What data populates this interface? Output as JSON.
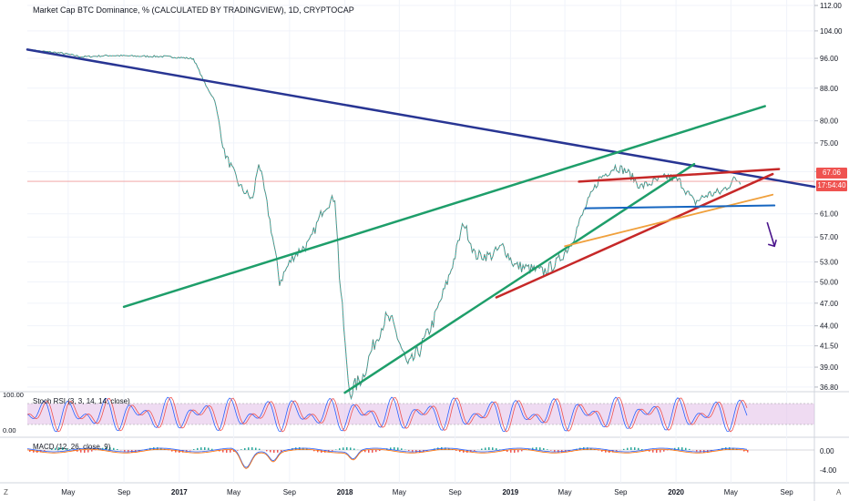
{
  "chart_data": {
    "type": "line",
    "title": "Market Cap BTC Dominance, % (CALCULATED BY TRADINGVIEW), 1D, CRYPTOCAP",
    "x_tick_labels": [
      "May",
      "Sep",
      "2017",
      "May",
      "Sep",
      "2018",
      "May",
      "Sep",
      "2019",
      "May",
      "Sep",
      "2020",
      "May",
      "Sep"
    ],
    "x_range": [
      "2016-02",
      "2020-11"
    ],
    "y_tick_labels": [
      "112.00",
      "104.00",
      "96.00",
      "88.00",
      "80.00",
      "75.00",
      "69.00",
      "61.00",
      "57.00",
      "53.00",
      "50.00",
      "47.00",
      "44.00",
      "41.50",
      "39.00",
      "36.80"
    ],
    "y_scale": "log",
    "last_price": "67.06",
    "countdown": "17:54:40",
    "series": [
      {
        "values": [
          [
            "2016-02-15",
            98.2
          ],
          [
            "2016-04-15",
            97.5
          ],
          [
            "2016-06-01",
            96.4
          ],
          [
            "2016-08-01",
            96.8
          ],
          [
            "2016-10-01",
            96.6
          ],
          [
            "2016-12-01",
            96.5
          ],
          [
            "2017-01-05",
            96.2
          ],
          [
            "2017-02-01",
            95.9
          ],
          [
            "2017-03-01",
            88.5
          ],
          [
            "2017-03-20",
            85.0
          ],
          [
            "2017-04-10",
            73.0
          ],
          [
            "2017-05-15",
            66.0
          ],
          [
            "2017-06-12",
            63.5
          ],
          [
            "2017-06-25",
            71.0
          ],
          [
            "2017-08-10",
            50.0
          ],
          [
            "2017-09-10",
            54.0
          ],
          [
            "2017-10-15",
            56.0
          ],
          [
            "2017-11-15",
            62.0
          ],
          [
            "2017-12-10",
            64.0
          ],
          [
            "2017-12-20",
            51.0
          ],
          [
            "2018-01-05",
            39.0
          ],
          [
            "2018-01-12",
            36.2
          ],
          [
            "2018-02-10",
            38.0
          ],
          [
            "2018-03-01",
            41.0
          ],
          [
            "2018-04-01",
            45.0
          ],
          [
            "2018-04-15",
            44.5
          ],
          [
            "2018-05-20",
            39.0
          ],
          [
            "2018-06-15",
            41.0
          ],
          [
            "2018-07-15",
            44.5
          ],
          [
            "2018-08-15",
            50.0
          ],
          [
            "2018-09-01",
            54.0
          ],
          [
            "2018-09-20",
            59.5
          ],
          [
            "2018-10-15",
            54.0
          ],
          [
            "2018-11-20",
            54.0
          ],
          [
            "2018-12-15",
            55.5
          ],
          [
            "2019-01-10",
            52.5
          ],
          [
            "2019-02-10",
            52.0
          ],
          [
            "2019-03-15",
            51.5
          ],
          [
            "2019-04-15",
            53.0
          ],
          [
            "2019-05-15",
            56.0
          ],
          [
            "2019-06-15",
            62.0
          ],
          [
            "2019-07-15",
            67.5
          ],
          [
            "2019-08-20",
            70.0
          ],
          [
            "2019-09-15",
            69.0
          ],
          [
            "2019-10-15",
            66.0
          ],
          [
            "2019-11-15",
            67.0
          ],
          [
            "2019-12-15",
            68.0
          ],
          [
            "2020-01-10",
            67.0
          ],
          [
            "2020-02-10",
            63.0
          ],
          [
            "2020-03-10",
            64.5
          ],
          [
            "2020-04-10",
            65.0
          ],
          [
            "2020-05-10",
            67.5
          ],
          [
            "2020-05-25",
            67.06
          ]
        ]
      }
    ],
    "indicators": [
      {
        "label": "Stoch RSI (3, 3, 14, 14, close)",
        "y_tick_labels": [
          "100.00",
          "0.00"
        ],
        "band_color": "#e1bee7"
      },
      {
        "label": "MACD (12, 26, close, 9)",
        "y_tick_labels": [
          "0.00",
          "-4.00"
        ]
      }
    ],
    "drawn_lines_colors": {
      "downtrend": "#283593",
      "channel": "#1e9e6a",
      "wedge": "#c62828",
      "support": "#1565c0",
      "minor": "#f0a03c",
      "arrow": "#4a148c"
    }
  },
  "ui": {
    "corner_left": "Z",
    "corner_right": "A"
  }
}
